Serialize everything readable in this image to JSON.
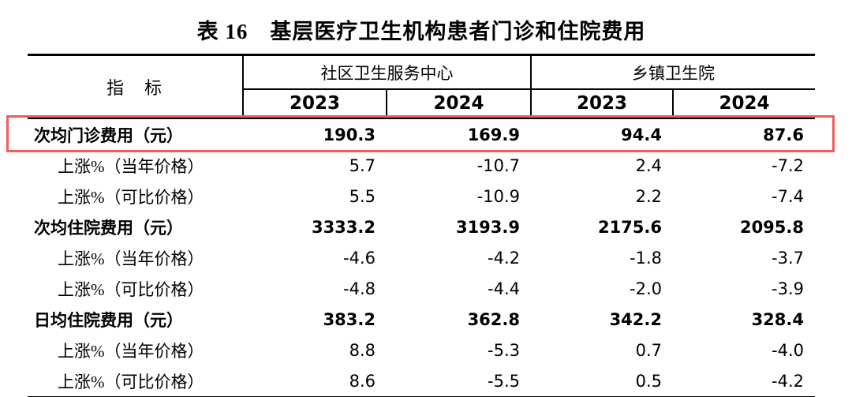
{
  "title": "表 16　基层医疗卫生机构患者门诊和住院费用",
  "table": {
    "indicator_header": "指　标",
    "groups": [
      {
        "label": "社区卫生服务中心",
        "years": [
          "2023",
          "2024"
        ]
      },
      {
        "label": "乡镇卫生院",
        "years": [
          "2023",
          "2024"
        ]
      }
    ],
    "rows": [
      {
        "label": "次均门诊费用（元）",
        "bold": true,
        "indent": false,
        "highlighted": true,
        "values": [
          "190.3",
          "169.9",
          "94.4",
          "87.6"
        ]
      },
      {
        "label": "上涨%（当年价格）",
        "bold": false,
        "indent": true,
        "highlighted": false,
        "values": [
          "5.7",
          "-10.7",
          "2.4",
          "-7.2"
        ]
      },
      {
        "label": "上涨%（可比价格）",
        "bold": false,
        "indent": true,
        "highlighted": false,
        "values": [
          "5.5",
          "-10.9",
          "2.2",
          "-7.4"
        ]
      },
      {
        "label": "次均住院费用（元）",
        "bold": true,
        "indent": false,
        "highlighted": false,
        "values": [
          "3333.2",
          "3193.9",
          "2175.6",
          "2095.8"
        ]
      },
      {
        "label": "上涨%（当年价格）",
        "bold": false,
        "indent": true,
        "highlighted": false,
        "values": [
          "-4.6",
          "-4.2",
          "-1.8",
          "-3.7"
        ]
      },
      {
        "label": "上涨%（可比价格）",
        "bold": false,
        "indent": true,
        "highlighted": false,
        "values": [
          "-4.8",
          "-4.4",
          "-2.0",
          "-3.9"
        ]
      },
      {
        "label": "日均住院费用（元）",
        "bold": true,
        "indent": false,
        "highlighted": false,
        "values": [
          "383.2",
          "362.8",
          "342.2",
          "328.4"
        ]
      },
      {
        "label": "上涨%（当年价格）",
        "bold": false,
        "indent": true,
        "highlighted": false,
        "values": [
          "8.8",
          "-5.3",
          "0.7",
          "-4.0"
        ]
      },
      {
        "label": "上涨%（可比价格）",
        "bold": false,
        "indent": true,
        "highlighted": false,
        "values": [
          "8.6",
          "-5.5",
          "0.5",
          "-4.2"
        ]
      }
    ],
    "highlight_color": "#f05c5c"
  }
}
